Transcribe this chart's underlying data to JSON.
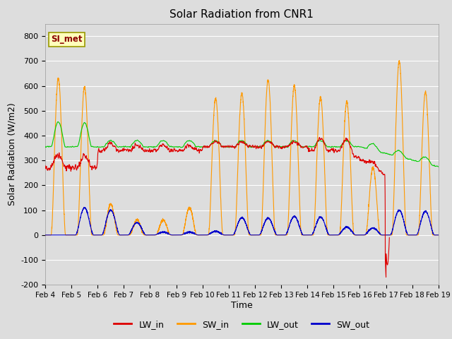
{
  "title": "Solar Radiation from CNR1",
  "xlabel": "Time",
  "ylabel": "Solar Radiation (W/m2)",
  "ylim": [
    -200,
    850
  ],
  "annotation": "SI_met",
  "annotation_color": "#8B0000",
  "annotation_bg": "#FFFFBB",
  "annotation_border": "#999900",
  "colors": {
    "LW_in": "#DD0000",
    "SW_in": "#FF9900",
    "LW_out": "#00CC00",
    "SW_out": "#0000CC"
  },
  "xtick_labels": [
    "Feb 4",
    "Feb 5",
    "Feb 6",
    "Feb 7",
    "Feb 8",
    "Feb 9",
    "Feb 10",
    "Feb 11",
    "Feb 12",
    "Feb 13",
    "Feb 14",
    "Feb 15",
    "Feb 16",
    "Feb 17",
    "Feb 18",
    "Feb 19"
  ],
  "ytick_values": [
    -200,
    -100,
    0,
    100,
    200,
    300,
    400,
    500,
    600,
    700,
    800
  ],
  "background_color": "#DDDDDD",
  "plot_bg_color": "#DDDDDD",
  "grid_color": "#FFFFFF",
  "linewidth": 0.8
}
